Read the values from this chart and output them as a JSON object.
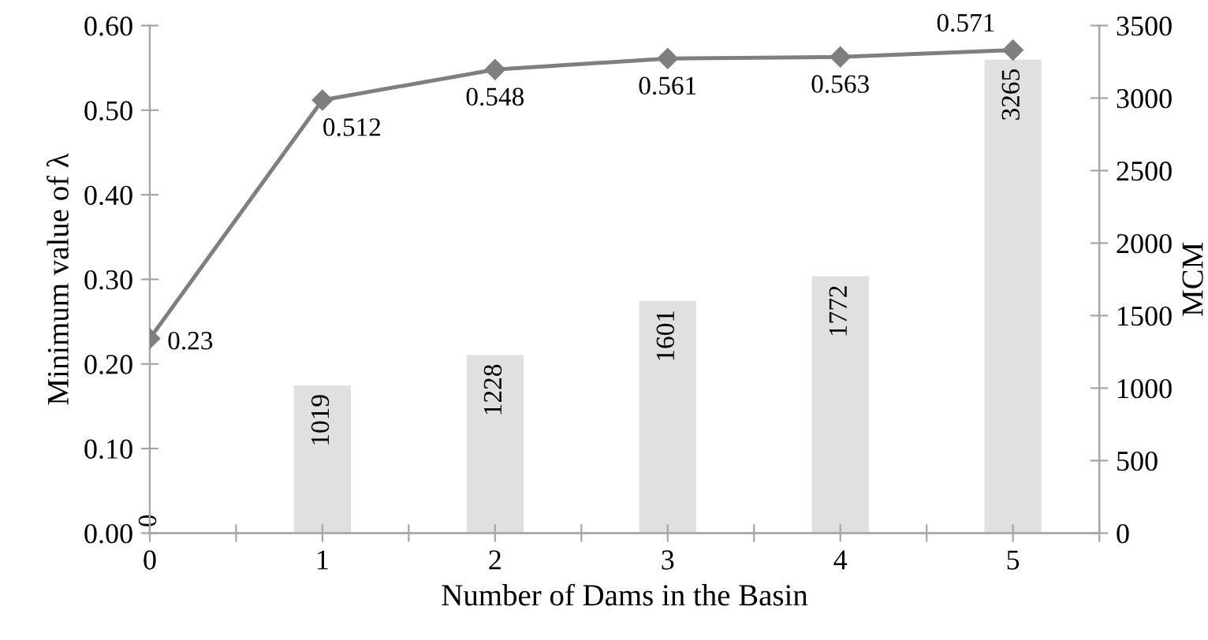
{
  "chart_data": {
    "type": "bar",
    "xlabel": "Number of Dams in the Basin",
    "ylabel": "Minimum value of λ",
    "y2label": "MCM",
    "x": [
      0,
      1,
      2,
      3,
      4,
      5
    ],
    "series": [
      {
        "axis": "y2",
        "color": "#e0e0e0",
        "values": [
          0,
          1019,
          1228,
          1601,
          1772,
          3265
        ],
        "data_labels": true
      },
      {
        "type": "line",
        "axis": "y",
        "color": "#7f7f7f",
        "marker": "diamond",
        "values": [
          0.23,
          0.512,
          0.548,
          0.561,
          0.563,
          0.571
        ],
        "data_labels": true
      }
    ],
    "xlim": [
      0,
      5.5
    ],
    "xticks": [
      0,
      {
        "value": 0.5,
        "label": null
      },
      1,
      {
        "value": 1.5,
        "label": null
      },
      2,
      {
        "value": 2.5,
        "label": null
      },
      3,
      {
        "value": 3.5,
        "label": null
      },
      4,
      {
        "value": 4.5,
        "label": null
      },
      5,
      {
        "value": 5.5,
        "label": null
      }
    ],
    "ylim": [
      0,
      0.6
    ],
    "yticks": [
      {
        "value": 0,
        "label": "0.00"
      },
      {
        "value": 0.1,
        "label": "0.10"
      },
      {
        "value": 0.2,
        "label": "0.20"
      },
      {
        "value": 0.3,
        "label": "0.30"
      },
      {
        "value": 0.4,
        "label": "0.40"
      },
      {
        "value": 0.5,
        "label": "0.50"
      },
      {
        "value": 0.6,
        "label": "0.60"
      }
    ],
    "y2lim": [
      0,
      3500
    ],
    "y2ticks": [
      0,
      500,
      1000,
      1500,
      2000,
      2500,
      3000,
      3500
    ],
    "grid": false,
    "legend": false
  }
}
